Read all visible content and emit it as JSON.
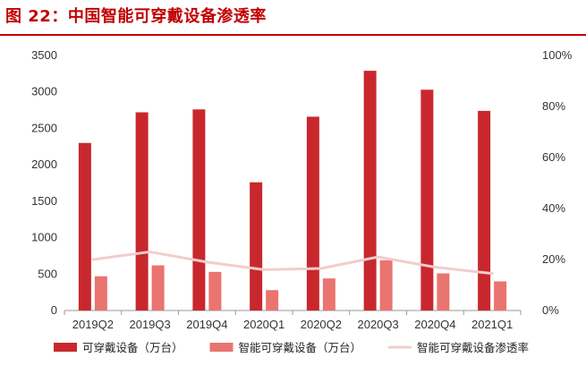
{
  "title": "图 22：中国智能可穿戴设备渗透率",
  "chart_data": {
    "type": "bar",
    "categories": [
      "2019Q2",
      "2019Q3",
      "2019Q4",
      "2020Q1",
      "2020Q2",
      "2020Q3",
      "2020Q4",
      "2021Q1"
    ],
    "series": [
      {
        "name": "可穿戴设备（万台）",
        "type": "bar",
        "axis": "left",
        "color": "#c8282d",
        "values": [
          2300,
          2720,
          2760,
          1760,
          2660,
          3290,
          3030,
          2740
        ]
      },
      {
        "name": "智能可穿戴设备（万台）",
        "type": "bar",
        "axis": "left",
        "color": "#ea7470",
        "values": [
          470,
          620,
          530,
          280,
          440,
          690,
          510,
          400
        ]
      },
      {
        "name": "智能可穿戴设备渗透率",
        "type": "line",
        "axis": "right",
        "color": "#f3cccc",
        "values": [
          0.2,
          0.23,
          0.19,
          0.16,
          0.165,
          0.21,
          0.17,
          0.145
        ]
      }
    ],
    "y_left": {
      "ylim": [
        0,
        3500
      ],
      "ticks": [
        "0",
        "500",
        "1000",
        "1500",
        "2000",
        "2500",
        "3000",
        "3500"
      ]
    },
    "y_right": {
      "ylim": [
        0,
        1
      ],
      "ticks": [
        "0%",
        "20%",
        "40%",
        "60%",
        "80%",
        "100%"
      ]
    },
    "grid": false,
    "legend": "bottom"
  }
}
